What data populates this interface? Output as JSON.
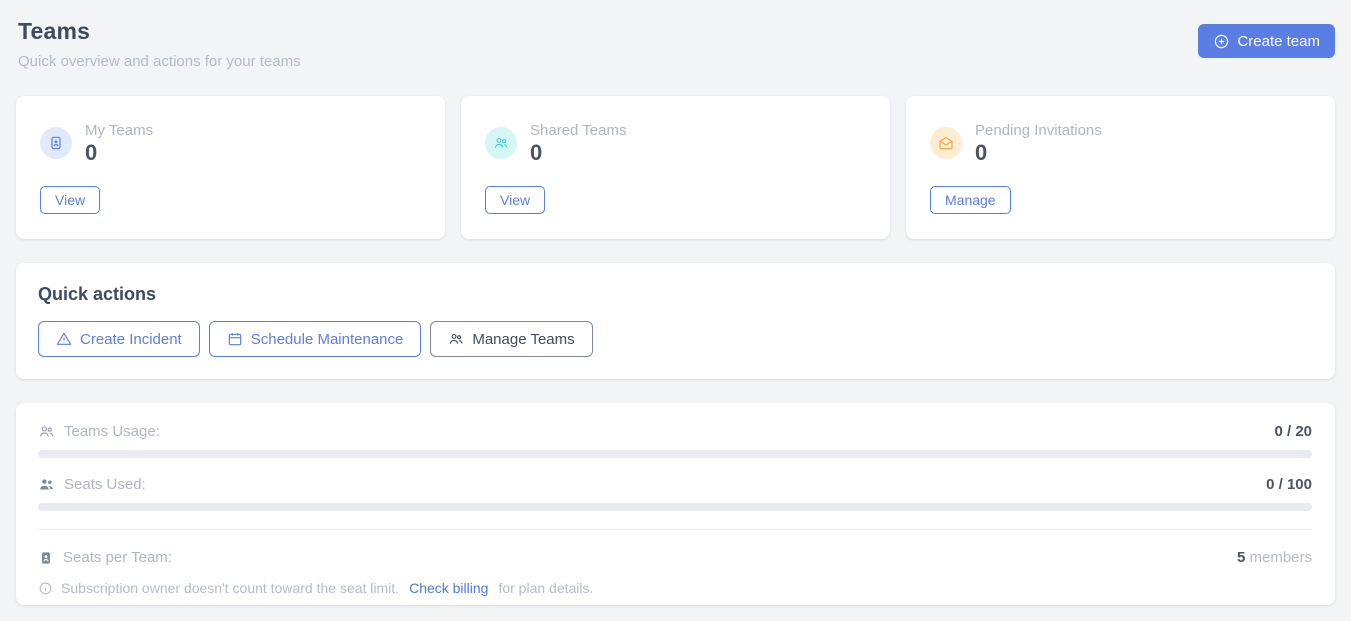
{
  "colors": {
    "accent_blue": "#5b7ee4",
    "accent_cyan": "#3fd1d6",
    "accent_orange": "#efa53f",
    "title_text": "#3d4b5d",
    "muted_text": "#b5bcc6",
    "value_text": "#4a5462",
    "link_blue": "#4d79e6",
    "page_bg": "#f2f4f6",
    "progress_track": "#e8ebef"
  },
  "header": {
    "title": "Teams",
    "subtitle": "Quick overview and actions for your teams",
    "create_button_label": "Create team"
  },
  "stats_cards": [
    {
      "label": "My Teams",
      "value": "0",
      "action_label": "View",
      "icon": "badge-icon"
    },
    {
      "label": "Shared Teams",
      "value": "0",
      "action_label": "View",
      "icon": "group-icon"
    },
    {
      "label": "Pending Invitations",
      "value": "0",
      "action_label": "Manage",
      "icon": "mail-open-icon"
    }
  ],
  "quick_actions": {
    "title": "Quick actions",
    "buttons": [
      {
        "label": "Create Incident",
        "icon": "warning-icon"
      },
      {
        "label": "Schedule Maintenance",
        "icon": "calendar-icon"
      },
      {
        "label": "Manage Teams",
        "icon": "group-icon"
      }
    ]
  },
  "usage": {
    "teams_usage": {
      "label": "Teams Usage:",
      "value": "0 / 20",
      "progress_percent": 0
    },
    "seats_used": {
      "label": "Seats Used:",
      "value": "0 / 100",
      "progress_percent": 0
    },
    "seats_per_team": {
      "label": "Seats per Team:",
      "value": "5",
      "suffix": " members"
    },
    "note": {
      "text": "Subscription owner doesn't count toward the seat limit.",
      "link_label": "Check billing",
      "text_after": "for plan details."
    }
  }
}
